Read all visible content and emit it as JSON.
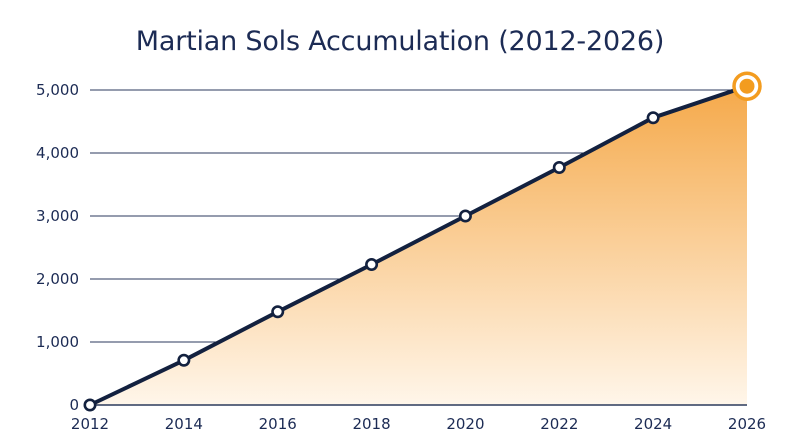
{
  "chart_data": {
    "type": "area",
    "title": "Martian Sols Accumulation (2012-2026)",
    "xlabel": "",
    "ylabel": "",
    "x": [
      2012,
      2014,
      2016,
      2018,
      2020,
      2022,
      2024,
      2026
    ],
    "x_ticks": [
      "2012",
      "2014",
      "2016",
      "2018",
      "2020",
      "2022",
      "2024",
      "2026"
    ],
    "y_ticks": [
      "0",
      "1,000",
      "2,000",
      "3,000",
      "4,000",
      "5,000"
    ],
    "y_tick_values": [
      0,
      1000,
      2000,
      3000,
      4000,
      5000
    ],
    "xlim": [
      2012,
      2026
    ],
    "ylim": [
      0,
      5000
    ],
    "grid": true,
    "series": [
      {
        "values": [
          0,
          710,
          1480,
          2230,
          3000,
          3770,
          4560,
          5060
        ],
        "line_color": "#13213f",
        "fill_color_top": "#f5a94a",
        "fill_color_bottom": "#fff6ea",
        "highlight_last_point_color": "#f39c1f"
      }
    ]
  }
}
